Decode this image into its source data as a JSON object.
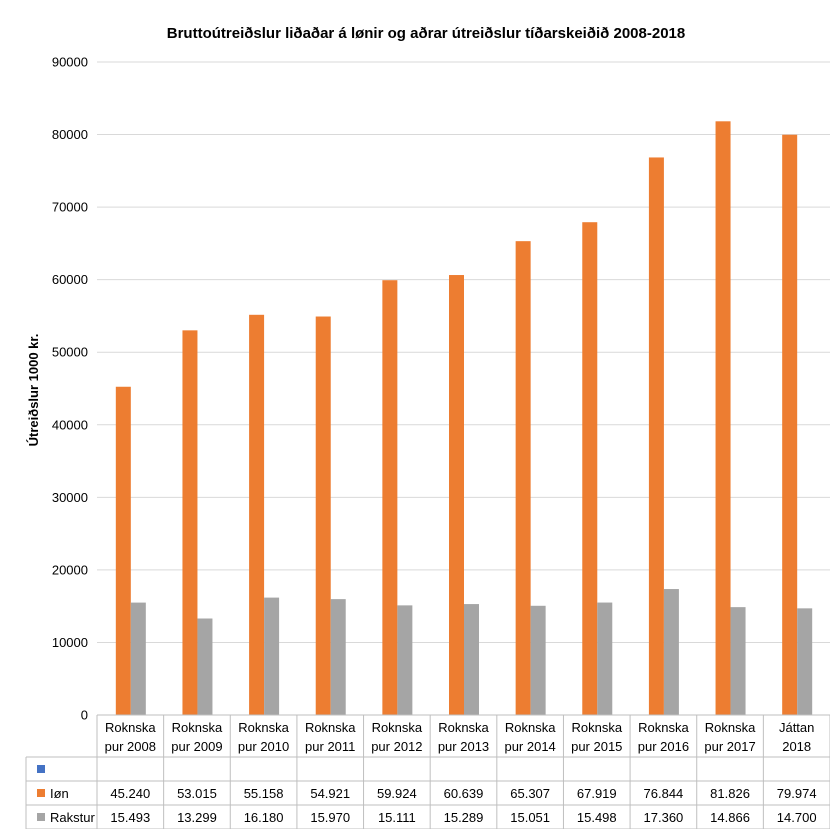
{
  "chart_data": {
    "type": "bar",
    "title": "Bruttoútreiðslur liðaðar á lønir og aðrar útreiðslur tíðarskeiðið 2008-2018",
    "ylabel": "Útreiðslur 1000 kr.",
    "ylim": [
      0,
      90000
    ],
    "yticks": [
      "0",
      "10000",
      "20000",
      "30000",
      "40000",
      "50000",
      "60000",
      "70000",
      "80000",
      "90000"
    ],
    "grid": true,
    "legend": "data-table",
    "categories": [
      [
        "Roknska",
        "pur 2008"
      ],
      [
        "Roknska",
        "pur 2009"
      ],
      [
        "Roknska",
        "pur 2010"
      ],
      [
        "Roknska",
        "pur 2011"
      ],
      [
        "Roknska",
        "pur 2012"
      ],
      [
        "Roknska",
        "pur 2013"
      ],
      [
        "Roknska",
        "pur 2014"
      ],
      [
        "Roknska",
        "pur 2015"
      ],
      [
        "Roknska",
        "pur 2016"
      ],
      [
        "Roknska",
        "pur 2017"
      ],
      [
        "Játtan",
        "2018"
      ]
    ],
    "series": [
      {
        "name": "",
        "color": "#4472C4",
        "values": [
          null,
          null,
          null,
          null,
          null,
          null,
          null,
          null,
          null,
          null,
          null
        ],
        "labels": [
          "",
          "",
          "",
          "",
          "",
          "",
          "",
          "",
          "",
          "",
          ""
        ]
      },
      {
        "name": "Iøn",
        "color": "#ED7D31",
        "values": [
          45240,
          53015,
          55158,
          54921,
          59924,
          60639,
          65307,
          67919,
          76844,
          81826,
          79974
        ],
        "labels": [
          "45.240",
          "53.015",
          "55.158",
          "54.921",
          "59.924",
          "60.639",
          "65.307",
          "67.919",
          "76.844",
          "81.826",
          "79.974"
        ]
      },
      {
        "name": "Rakstur",
        "color": "#A5A5A5",
        "values": [
          15493,
          13299,
          16180,
          15970,
          15111,
          15289,
          15051,
          15498,
          17360,
          14866,
          14700
        ],
        "labels": [
          "15.493",
          "13.299",
          "16.180",
          "15.970",
          "15.111",
          "15.289",
          "15.051",
          "15.498",
          "17.360",
          "14.866",
          "14.700"
        ]
      }
    ]
  }
}
